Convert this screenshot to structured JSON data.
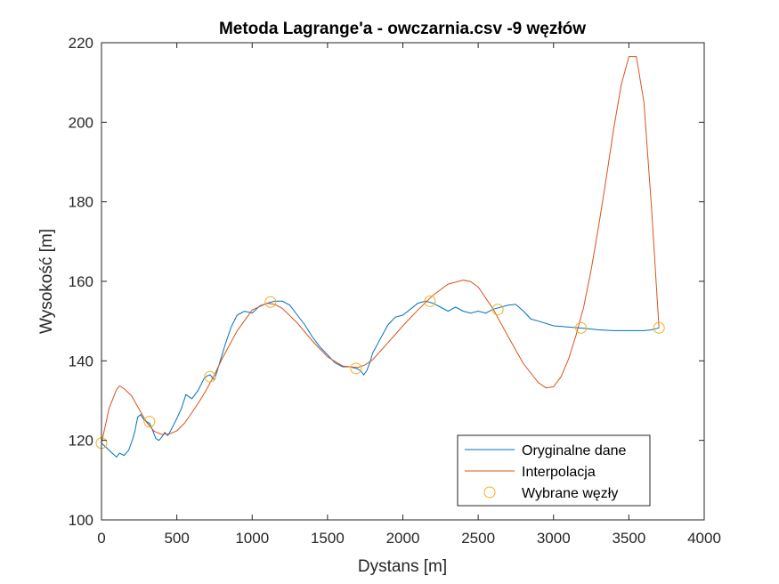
{
  "chart_data": {
    "type": "line",
    "title": "Metoda Lagrange'a - owczarnia.csv -9 węzłów",
    "xlabel": "Dystans [m]",
    "ylabel": "Wysokość [m]",
    "xlim": [
      0,
      4000
    ],
    "ylim": [
      100,
      220
    ],
    "xticks": [
      0,
      500,
      1000,
      1500,
      2000,
      2500,
      3000,
      3500,
      4000
    ],
    "yticks": [
      100,
      120,
      140,
      160,
      180,
      200,
      220
    ],
    "grid": false,
    "legend_position": "bottom-right",
    "series": [
      {
        "name": "Oryginalne dane",
        "color": "#0072BD",
        "style": "line",
        "x": [
          0,
          50,
          100,
          120,
          150,
          180,
          200,
          220,
          240,
          260,
          280,
          300,
          320,
          340,
          360,
          380,
          400,
          420,
          440,
          460,
          480,
          500,
          530,
          560,
          600,
          640,
          680,
          700,
          720,
          750,
          780,
          820,
          860,
          900,
          950,
          1000,
          1050,
          1100,
          1150,
          1200,
          1250,
          1300,
          1350,
          1400,
          1450,
          1500,
          1550,
          1600,
          1650,
          1700,
          1720,
          1740,
          1760,
          1780,
          1800,
          1850,
          1900,
          1950,
          2000,
          2050,
          2100,
          2150,
          2200,
          2250,
          2300,
          2350,
          2400,
          2450,
          2500,
          2550,
          2600,
          2650,
          2700,
          2750,
          2800,
          2850,
          2900,
          3000,
          3100,
          3200,
          3300,
          3400,
          3500,
          3600,
          3650,
          3700
        ],
        "y": [
          119.3,
          117.5,
          115.8,
          116.8,
          116.2,
          117.5,
          119.5,
          122.0,
          125.8,
          126.5,
          125.2,
          124.7,
          124.2,
          122.5,
          120.5,
          120.0,
          120.8,
          122.0,
          121.2,
          122.5,
          124.0,
          125.5,
          128.0,
          131.5,
          130.5,
          132.5,
          135.5,
          136.2,
          136.5,
          135.2,
          139.0,
          144.0,
          148.5,
          151.5,
          152.5,
          152.0,
          153.8,
          154.5,
          155.0,
          155.0,
          154.0,
          151.5,
          149.0,
          146.0,
          143.5,
          141.5,
          139.5,
          138.5,
          138.5,
          138.0,
          137.5,
          136.5,
          137.5,
          139.5,
          142.0,
          145.5,
          149.0,
          151.0,
          151.5,
          153.0,
          154.5,
          155.0,
          154.5,
          153.5,
          152.5,
          153.5,
          152.5,
          152.0,
          152.5,
          152.0,
          153.0,
          153.5,
          154.0,
          154.2,
          152.5,
          150.5,
          150.0,
          148.8,
          148.5,
          148.2,
          147.8,
          147.6,
          147.6,
          147.6,
          147.8,
          148.3
        ]
      },
      {
        "name": "Interpolacja",
        "color": "#D95319",
        "style": "line",
        "x": [
          0,
          50,
          100,
          120,
          150,
          200,
          250,
          300,
          350,
          400,
          450,
          500,
          550,
          600,
          650,
          700,
          750,
          800,
          900,
          1000,
          1100,
          1150,
          1200,
          1300,
          1400,
          1500,
          1600,
          1700,
          1750,
          1800,
          1900,
          2000,
          2100,
          2200,
          2300,
          2400,
          2450,
          2500,
          2600,
          2700,
          2800,
          2900,
          2950,
          3000,
          3050,
          3100,
          3150,
          3200,
          3250,
          3300,
          3350,
          3400,
          3450,
          3500,
          3550,
          3600,
          3650,
          3700
        ],
        "y": [
          119.3,
          128.0,
          132.8,
          133.7,
          133.0,
          131.2,
          127.8,
          124.5,
          122.3,
          121.5,
          121.6,
          122.4,
          124.3,
          127.0,
          129.8,
          133.0,
          136.5,
          140.5,
          147.5,
          152.8,
          154.5,
          154.2,
          153.2,
          149.5,
          145.0,
          141.0,
          138.7,
          138.3,
          139.0,
          140.3,
          144.5,
          148.8,
          152.8,
          156.5,
          159.3,
          160.3,
          159.9,
          158.6,
          153.0,
          146.0,
          139.3,
          134.5,
          133.2,
          133.5,
          136.0,
          140.5,
          146.5,
          153.5,
          163.0,
          174.0,
          186.0,
          198.5,
          209.5,
          216.5,
          216.5,
          205.0,
          178.5,
          148.3
        ]
      },
      {
        "name": "Wybrane węzły",
        "color": "#EDB120",
        "style": "marker-circle",
        "x": [
          0,
          318,
          720,
          1122,
          1689,
          2180,
          2630,
          3182,
          3700
        ],
        "y": [
          119.3,
          124.7,
          136.0,
          154.8,
          138.1,
          155.0,
          152.9,
          148.3,
          148.3
        ]
      }
    ]
  }
}
